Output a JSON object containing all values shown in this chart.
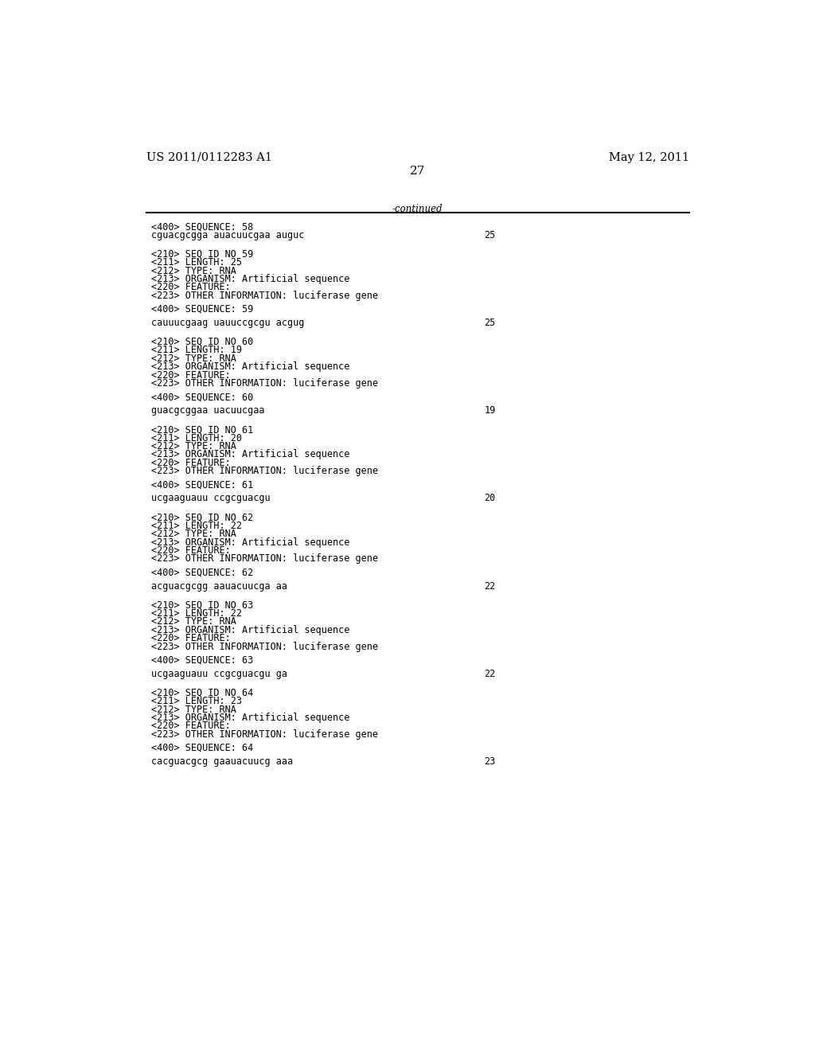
{
  "header_left": "US 2011/0112283 A1",
  "header_right": "May 12, 2011",
  "page_number": "27",
  "continued_label": "-continued",
  "background_color": "#ffffff",
  "text_color": "#000000",
  "font_size_header": 10.5,
  "font_size_body": 8.5,
  "font_size_page": 11,
  "lines": [
    {
      "type": "seq_label",
      "text": "<400> SEQUENCE: 58"
    },
    {
      "type": "sequence",
      "text": "cguacgcgga auacuucgaa auguc",
      "num": "25"
    },
    {
      "type": "blank"
    },
    {
      "type": "blank"
    },
    {
      "type": "meta",
      "text": "<210> SEQ ID NO 59"
    },
    {
      "type": "meta",
      "text": "<211> LENGTH: 25"
    },
    {
      "type": "meta",
      "text": "<212> TYPE: RNA"
    },
    {
      "type": "meta",
      "text": "<213> ORGANISM: Artificial sequence"
    },
    {
      "type": "meta",
      "text": "<220> FEATURE:"
    },
    {
      "type": "meta",
      "text": "<223> OTHER INFORMATION: luciferase gene"
    },
    {
      "type": "blank"
    },
    {
      "type": "seq_label",
      "text": "<400> SEQUENCE: 59"
    },
    {
      "type": "blank"
    },
    {
      "type": "sequence",
      "text": "cauuucgaag uauuccgcgu acgug",
      "num": "25"
    },
    {
      "type": "blank"
    },
    {
      "type": "blank"
    },
    {
      "type": "meta",
      "text": "<210> SEQ ID NO 60"
    },
    {
      "type": "meta",
      "text": "<211> LENGTH: 19"
    },
    {
      "type": "meta",
      "text": "<212> TYPE: RNA"
    },
    {
      "type": "meta",
      "text": "<213> ORGANISM: Artificial sequence"
    },
    {
      "type": "meta",
      "text": "<220> FEATURE:"
    },
    {
      "type": "meta",
      "text": "<223> OTHER INFORMATION: luciferase gene"
    },
    {
      "type": "blank"
    },
    {
      "type": "seq_label",
      "text": "<400> SEQUENCE: 60"
    },
    {
      "type": "blank"
    },
    {
      "type": "sequence",
      "text": "guacgcggaa uacuucgaa",
      "num": "19"
    },
    {
      "type": "blank"
    },
    {
      "type": "blank"
    },
    {
      "type": "meta",
      "text": "<210> SEQ ID NO 61"
    },
    {
      "type": "meta",
      "text": "<211> LENGTH: 20"
    },
    {
      "type": "meta",
      "text": "<212> TYPE: RNA"
    },
    {
      "type": "meta",
      "text": "<213> ORGANISM: Artificial sequence"
    },
    {
      "type": "meta",
      "text": "<220> FEATURE:"
    },
    {
      "type": "meta",
      "text": "<223> OTHER INFORMATION: luciferase gene"
    },
    {
      "type": "blank"
    },
    {
      "type": "seq_label",
      "text": "<400> SEQUENCE: 61"
    },
    {
      "type": "blank"
    },
    {
      "type": "sequence",
      "text": "ucgaaguauu ccgcguacgu",
      "num": "20"
    },
    {
      "type": "blank"
    },
    {
      "type": "blank"
    },
    {
      "type": "meta",
      "text": "<210> SEQ ID NO 62"
    },
    {
      "type": "meta",
      "text": "<211> LENGTH: 22"
    },
    {
      "type": "meta",
      "text": "<212> TYPE: RNA"
    },
    {
      "type": "meta",
      "text": "<213> ORGANISM: Artificial sequence"
    },
    {
      "type": "meta",
      "text": "<220> FEATURE:"
    },
    {
      "type": "meta",
      "text": "<223> OTHER INFORMATION: luciferase gene"
    },
    {
      "type": "blank"
    },
    {
      "type": "seq_label",
      "text": "<400> SEQUENCE: 62"
    },
    {
      "type": "blank"
    },
    {
      "type": "sequence",
      "text": "acguacgcgg aauacuucga aa",
      "num": "22"
    },
    {
      "type": "blank"
    },
    {
      "type": "blank"
    },
    {
      "type": "meta",
      "text": "<210> SEQ ID NO 63"
    },
    {
      "type": "meta",
      "text": "<211> LENGTH: 22"
    },
    {
      "type": "meta",
      "text": "<212> TYPE: RNA"
    },
    {
      "type": "meta",
      "text": "<213> ORGANISM: Artificial sequence"
    },
    {
      "type": "meta",
      "text": "<220> FEATURE:"
    },
    {
      "type": "meta",
      "text": "<223> OTHER INFORMATION: luciferase gene"
    },
    {
      "type": "blank"
    },
    {
      "type": "seq_label",
      "text": "<400> SEQUENCE: 63"
    },
    {
      "type": "blank"
    },
    {
      "type": "sequence",
      "text": "ucgaaguauu ccgcguacgu ga",
      "num": "22"
    },
    {
      "type": "blank"
    },
    {
      "type": "blank"
    },
    {
      "type": "meta",
      "text": "<210> SEQ ID NO 64"
    },
    {
      "type": "meta",
      "text": "<211> LENGTH: 23"
    },
    {
      "type": "meta",
      "text": "<212> TYPE: RNA"
    },
    {
      "type": "meta",
      "text": "<213> ORGANISM: Artificial sequence"
    },
    {
      "type": "meta",
      "text": "<220> FEATURE:"
    },
    {
      "type": "meta",
      "text": "<223> OTHER INFORMATION: luciferase gene"
    },
    {
      "type": "blank"
    },
    {
      "type": "seq_label",
      "text": "<400> SEQUENCE: 64"
    },
    {
      "type": "blank"
    },
    {
      "type": "sequence",
      "text": "cacguacgcg gaauacuucg aaa",
      "num": "23"
    }
  ]
}
